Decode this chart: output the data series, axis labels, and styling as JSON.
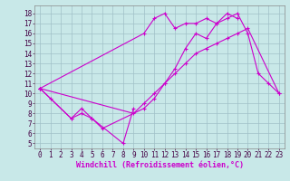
{
  "bg_color": "#c8e8e8",
  "grid_color": "#a0c0c8",
  "line_color": "#cc00cc",
  "marker": "+",
  "markersize": 3,
  "linewidth": 0.8,
  "xlabel": "Windchill (Refroidissement éolien,°C)",
  "xlabel_fontsize": 6,
  "tick_fontsize": 5.5,
  "xlim": [
    -0.5,
    23.5
  ],
  "ylim": [
    4.5,
    18.8
  ],
  "xticks": [
    0,
    1,
    2,
    3,
    4,
    5,
    6,
    7,
    8,
    9,
    10,
    11,
    12,
    13,
    14,
    15,
    16,
    17,
    18,
    19,
    20,
    21,
    22,
    23
  ],
  "yticks": [
    5,
    6,
    7,
    8,
    9,
    10,
    11,
    12,
    13,
    14,
    15,
    16,
    17,
    18
  ],
  "series": [
    {
      "x": [
        0,
        1,
        3,
        4,
        5,
        6,
        10,
        11,
        12,
        13,
        14,
        15,
        16,
        17,
        18,
        19,
        20,
        21,
        22,
        23
      ],
      "y": [
        10.5,
        9.5,
        7.5,
        8.5,
        7.5,
        6.5,
        8.5,
        9.5,
        11.0,
        12.5,
        14.5,
        16.0,
        15.5,
        17.0,
        17.5,
        18.0,
        16.0,
        12.0,
        11.0,
        10.0
      ]
    },
    {
      "x": [
        0,
        3,
        4,
        5,
        8,
        9
      ],
      "y": [
        10.5,
        7.5,
        8.0,
        7.5,
        5.0,
        8.5
      ]
    },
    {
      "x": [
        0,
        10,
        11,
        12,
        13,
        14,
        15,
        16,
        17,
        18,
        19
      ],
      "y": [
        10.5,
        16.0,
        17.5,
        18.0,
        16.5,
        17.0,
        17.0,
        17.5,
        17.0,
        18.0,
        17.5
      ]
    },
    {
      "x": [
        0,
        9,
        10,
        11,
        12,
        13,
        14,
        15,
        16,
        17,
        18,
        19,
        20,
        23
      ],
      "y": [
        10.5,
        8.0,
        9.0,
        10.0,
        11.0,
        12.0,
        13.0,
        14.0,
        14.5,
        15.0,
        15.5,
        16.0,
        16.5,
        10.0
      ]
    }
  ]
}
